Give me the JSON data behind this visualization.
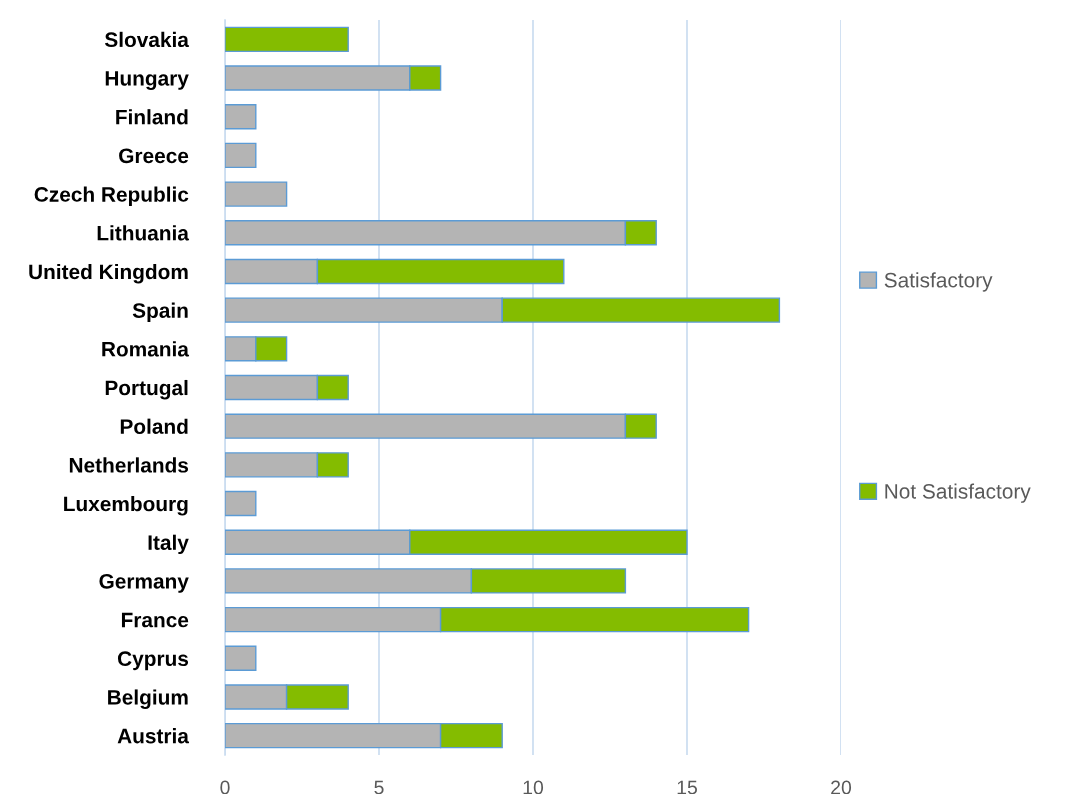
{
  "chart_data": {
    "type": "bar",
    "orientation": "horizontal",
    "stacked": true,
    "categories": [
      "Slovakia",
      "Hungary",
      "Finland",
      "Greece",
      "Czech Republic",
      "Lithuania",
      "United Kingdom",
      "Spain",
      "Romania",
      "Portugal",
      "Poland",
      "Netherlands",
      "Luxembourg",
      "Italy",
      "Germany",
      "France",
      "Cyprus",
      "Belgium",
      "Austria"
    ],
    "series": [
      {
        "name": "Satisfactory",
        "color": "#b4b4b4",
        "values": [
          0,
          6,
          1,
          1,
          2,
          13,
          3,
          9,
          1,
          3,
          13,
          3,
          1,
          6,
          8,
          7,
          1,
          2,
          7
        ]
      },
      {
        "name": "Not Satisfactory",
        "color": "#84bc00",
        "values": [
          4,
          1,
          0,
          0,
          0,
          1,
          8,
          9,
          1,
          1,
          1,
          1,
          0,
          9,
          5,
          10,
          0,
          2,
          2
        ]
      }
    ],
    "xlim": [
      0,
      20
    ],
    "xticks": [
      0,
      5,
      10,
      15,
      20
    ],
    "grid": "x",
    "legend": "right"
  }
}
